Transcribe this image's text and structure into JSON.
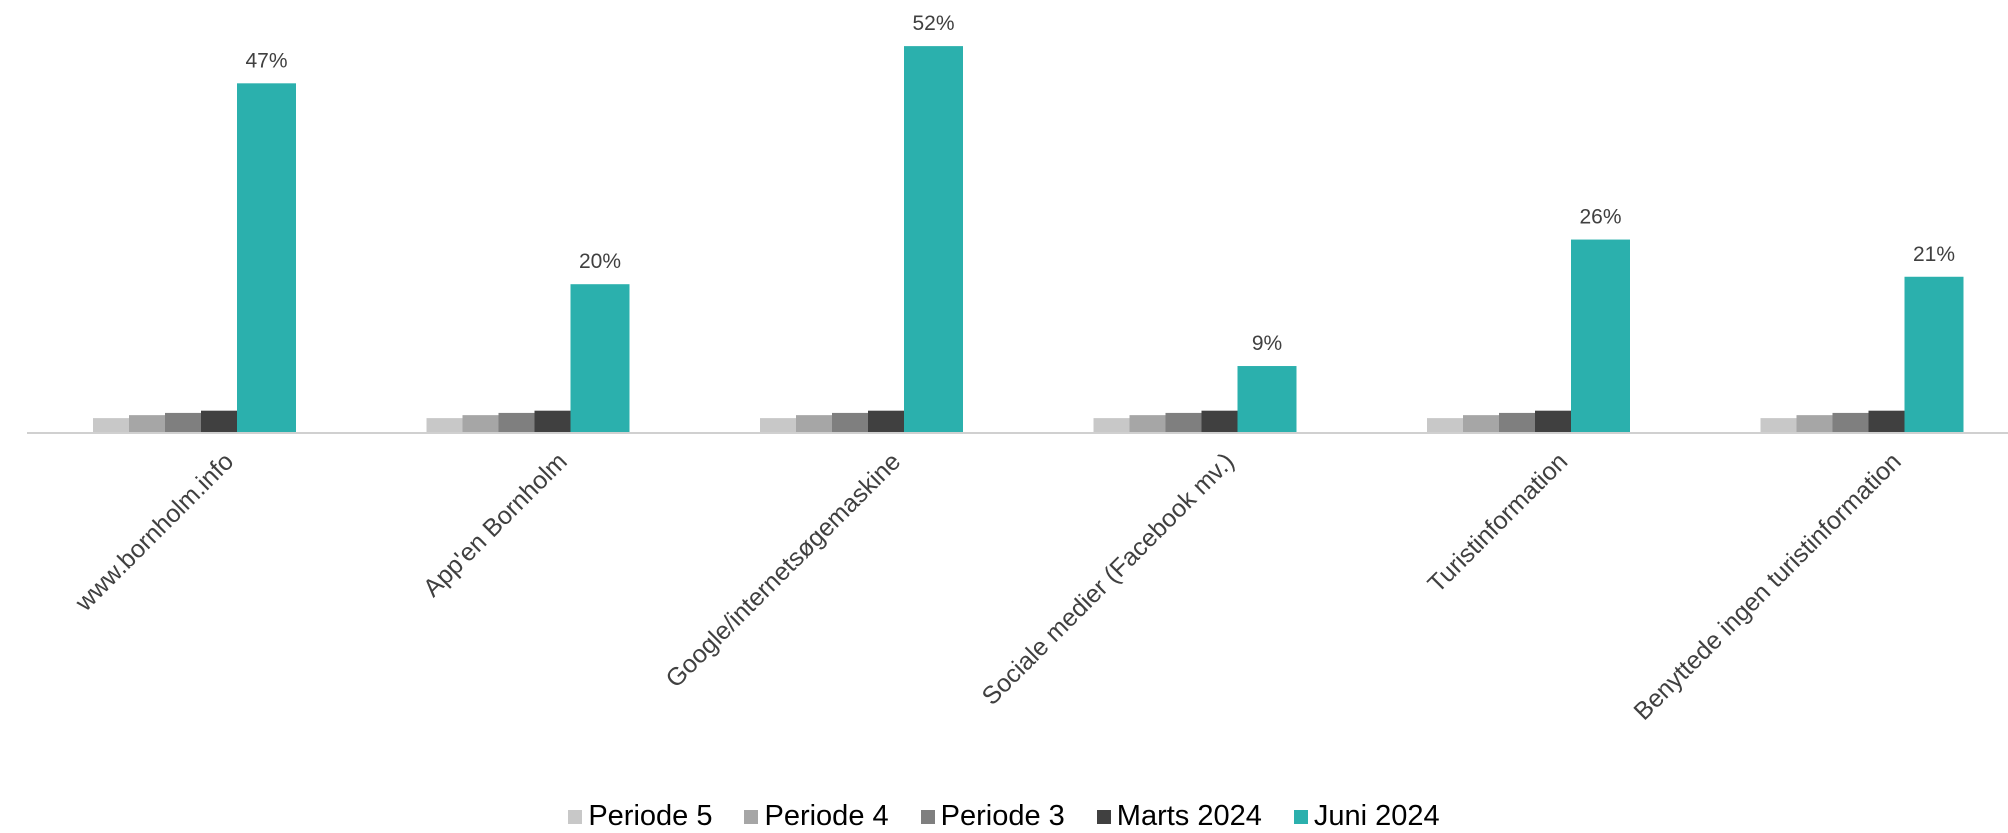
{
  "chart_data": {
    "type": "bar",
    "categories": [
      "www.bornholm.info",
      "App'en Bornholm",
      "Google/internetsøgemaskine",
      "Sociale medier (Facebook mv.)",
      "Turistinformation",
      "Benyttede ingen turistinformation"
    ],
    "series": [
      {
        "name": "Periode 5",
        "color": "#c8c8c8",
        "values": [
          2,
          2,
          2,
          2,
          2,
          2
        ]
      },
      {
        "name": "Periode 4",
        "color": "#a6a6a6",
        "values": [
          2.4,
          2.4,
          2.4,
          2.4,
          2.4,
          2.4
        ]
      },
      {
        "name": "Periode 3",
        "color": "#7f7f7f",
        "values": [
          2.7,
          2.7,
          2.7,
          2.7,
          2.7,
          2.7
        ]
      },
      {
        "name": "Marts 2024",
        "color": "#404040",
        "values": [
          3,
          3,
          3,
          3,
          3,
          3
        ]
      },
      {
        "name": "Juni 2024",
        "color": "#2bb0ad",
        "values": [
          47,
          20,
          52,
          9,
          26,
          21
        ]
      }
    ],
    "data_labels": [
      "47%",
      "20%",
      "52%",
      "9%",
      "26%",
      "21%"
    ],
    "ylim": [
      0,
      55
    ],
    "grid": false,
    "legend_position": "bottom"
  }
}
